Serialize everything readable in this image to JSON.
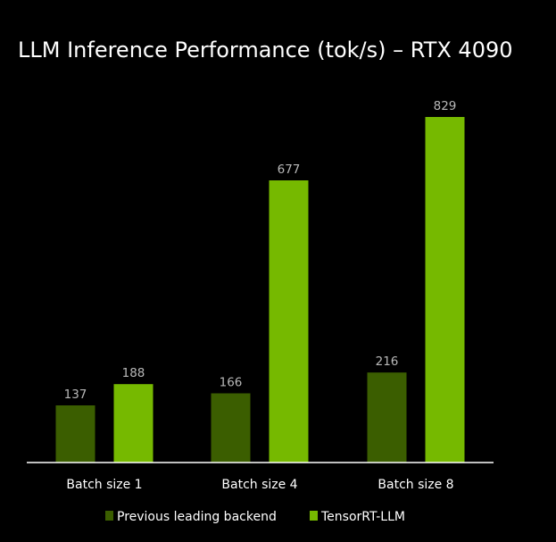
{
  "chart_data": {
    "type": "bar",
    "title": "LLM Inference Performance (tok/s) – RTX 4090",
    "categories": [
      "Batch size 1",
      "Batch size 4",
      "Batch size 8"
    ],
    "series": [
      {
        "name": "Previous leading backend",
        "values": [
          137,
          166,
          216
        ],
        "color": "#3b5e00"
      },
      {
        "name": "TensorRT-LLM",
        "values": [
          188,
          677,
          829
        ],
        "color": "#76b900"
      }
    ],
    "ylim": [
      0,
      850
    ],
    "grid": false,
    "legend_position": "bottom-center",
    "background": "#000000",
    "axis_color": "#ffffff"
  }
}
